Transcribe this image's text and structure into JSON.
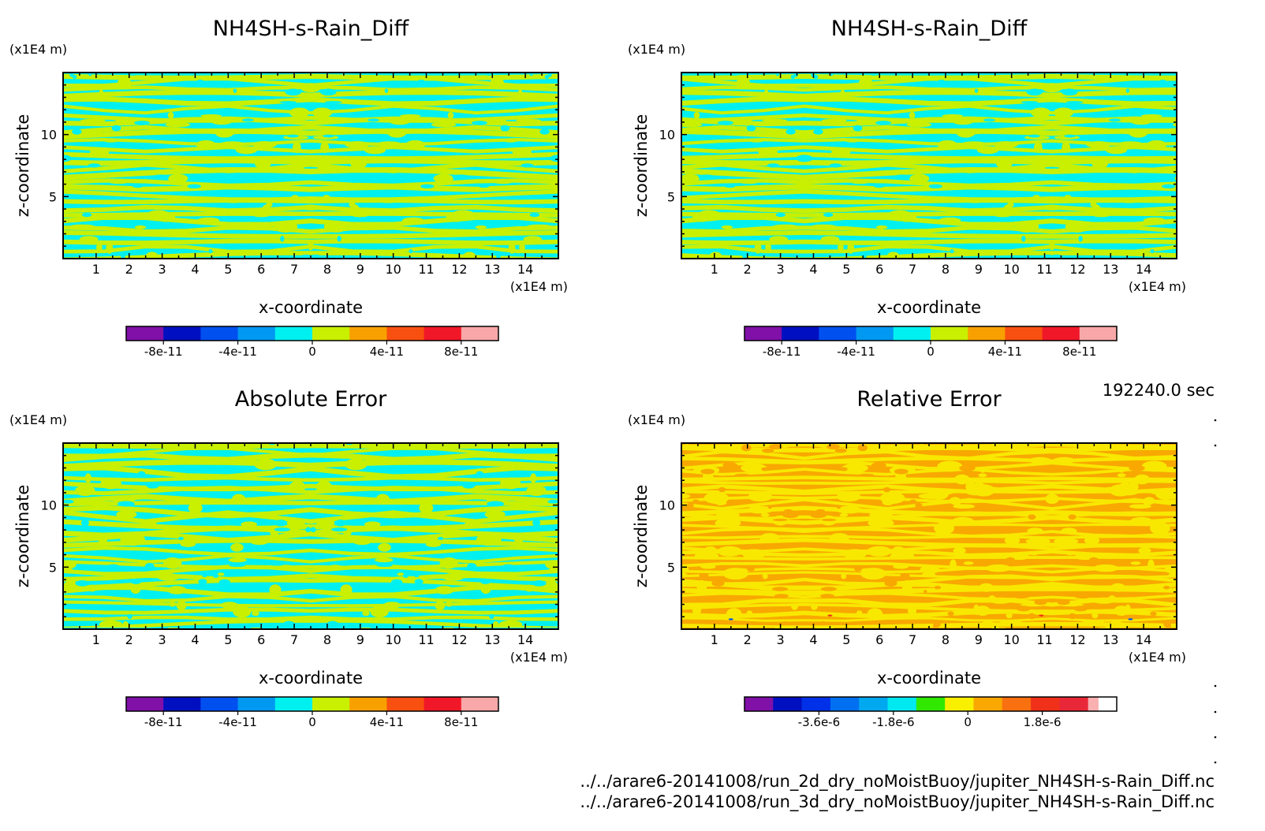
{
  "footer": {
    "time_label": "192240.0 sec",
    "file1": "../../arare6-20141008/run_2d_dry_noMoistBuoy/jupiter_NH4SH-s-Rain_Diff.nc",
    "file2": "../../arare6-20141008/run_3d_dry_noMoistBuoy/jupiter_NH4SH-s-Rain_Diff.nc"
  },
  "chart_data": [
    {
      "type": "heatmap",
      "title": "NH4SH-s-Rain_Diff",
      "xlabel": "x-coordinate",
      "ylabel": "z-coordinate",
      "x_unit": "(x1E4 m)",
      "y_unit": "(x1E4 m)",
      "xlim": [
        0,
        15
      ],
      "ylim": [
        0,
        15
      ],
      "x_ticks": [
        1,
        2,
        3,
        4,
        5,
        6,
        7,
        8,
        9,
        10,
        11,
        12,
        13,
        14
      ],
      "y_ticks": [
        5,
        10
      ],
      "field_colors": [
        "#00f0f0",
        "#c8f000"
      ],
      "colorbar": {
        "colors": [
          "#8010a8",
          "#0010c0",
          "#0050f0",
          "#0098f0",
          "#00f0f0",
          "#c8f000",
          "#f8a000",
          "#f85010",
          "#f01828",
          "#f8a8a8"
        ],
        "tick_labels": [
          "-8e-11",
          "-4e-11",
          "0",
          "4e-11",
          "8e-11"
        ],
        "tick_values": [
          -8e-11,
          -4e-11,
          0,
          4e-11,
          8e-11
        ],
        "range": [
          -1e-10,
          1e-10
        ]
      }
    },
    {
      "type": "heatmap",
      "title": "NH4SH-s-Rain_Diff",
      "xlabel": "x-coordinate",
      "ylabel": "z-coordinate",
      "x_unit": "(x1E4 m)",
      "y_unit": "(x1E4 m)",
      "xlim": [
        0,
        15
      ],
      "ylim": [
        0,
        15
      ],
      "x_ticks": [
        1,
        2,
        3,
        4,
        5,
        6,
        7,
        8,
        9,
        10,
        11,
        12,
        13,
        14
      ],
      "y_ticks": [
        5,
        10
      ],
      "field_colors": [
        "#00f0f0",
        "#c8f000"
      ],
      "colorbar": {
        "colors": [
          "#8010a8",
          "#0010c0",
          "#0050f0",
          "#0098f0",
          "#00f0f0",
          "#c8f000",
          "#f8a000",
          "#f85010",
          "#f01828",
          "#f8a8a8"
        ],
        "tick_labels": [
          "-8e-11",
          "-4e-11",
          "0",
          "4e-11",
          "8e-11"
        ],
        "tick_values": [
          -8e-11,
          -4e-11,
          0,
          4e-11,
          8e-11
        ],
        "range": [
          -1e-10,
          1e-10
        ]
      }
    },
    {
      "type": "heatmap",
      "title": "Absolute Error",
      "xlabel": "x-coordinate",
      "ylabel": "z-coordinate",
      "x_unit": "(x1E4 m)",
      "y_unit": "(x1E4 m)",
      "xlim": [
        0,
        15
      ],
      "ylim": [
        0,
        15
      ],
      "x_ticks": [
        1,
        2,
        3,
        4,
        5,
        6,
        7,
        8,
        9,
        10,
        11,
        12,
        13,
        14
      ],
      "y_ticks": [
        5,
        10
      ],
      "field_colors": [
        "#00f0f0",
        "#c8f000"
      ],
      "colorbar": {
        "colors": [
          "#8010a8",
          "#0010c0",
          "#0050f0",
          "#0098f0",
          "#00f0f0",
          "#c8f000",
          "#f8a000",
          "#f85010",
          "#f01828",
          "#f8a8a8"
        ],
        "tick_labels": [
          "-8e-11",
          "-4e-11",
          "0",
          "4e-11",
          "8e-11"
        ],
        "tick_values": [
          -8e-11,
          -4e-11,
          0,
          4e-11,
          8e-11
        ],
        "range": [
          -1e-10,
          1e-10
        ]
      }
    },
    {
      "type": "heatmap",
      "title": "Relative Error",
      "xlabel": "x-coordinate",
      "ylabel": "z-coordinate",
      "x_unit": "(x1E4 m)",
      "y_unit": "(x1E4 m)",
      "xlim": [
        0,
        15
      ],
      "ylim": [
        0,
        15
      ],
      "x_ticks": [
        1,
        2,
        3,
        4,
        5,
        6,
        7,
        8,
        9,
        10,
        11,
        12,
        13,
        14
      ],
      "y_ticks": [
        5,
        10
      ],
      "field_colors": [
        "#f8a800",
        "#f8e800"
      ],
      "colorbar": {
        "colors": [
          "#8010a8",
          "#0010c0",
          "#0030e8",
          "#0070f0",
          "#00a8f0",
          "#00e8f0",
          "#30e800",
          "#f8f000",
          "#f8a800",
          "#f87010",
          "#f03018",
          "#e82838",
          "#f8b0b0"
        ],
        "tick_labels": [
          "-3.6e-6",
          "-1.8e-6",
          "0",
          "1.8e-6"
        ],
        "tick_values": [
          -3.6e-06,
          -1.8e-06,
          0,
          1.8e-06
        ],
        "range": [
          -5.4e-06,
          3.6e-06
        ]
      }
    }
  ]
}
